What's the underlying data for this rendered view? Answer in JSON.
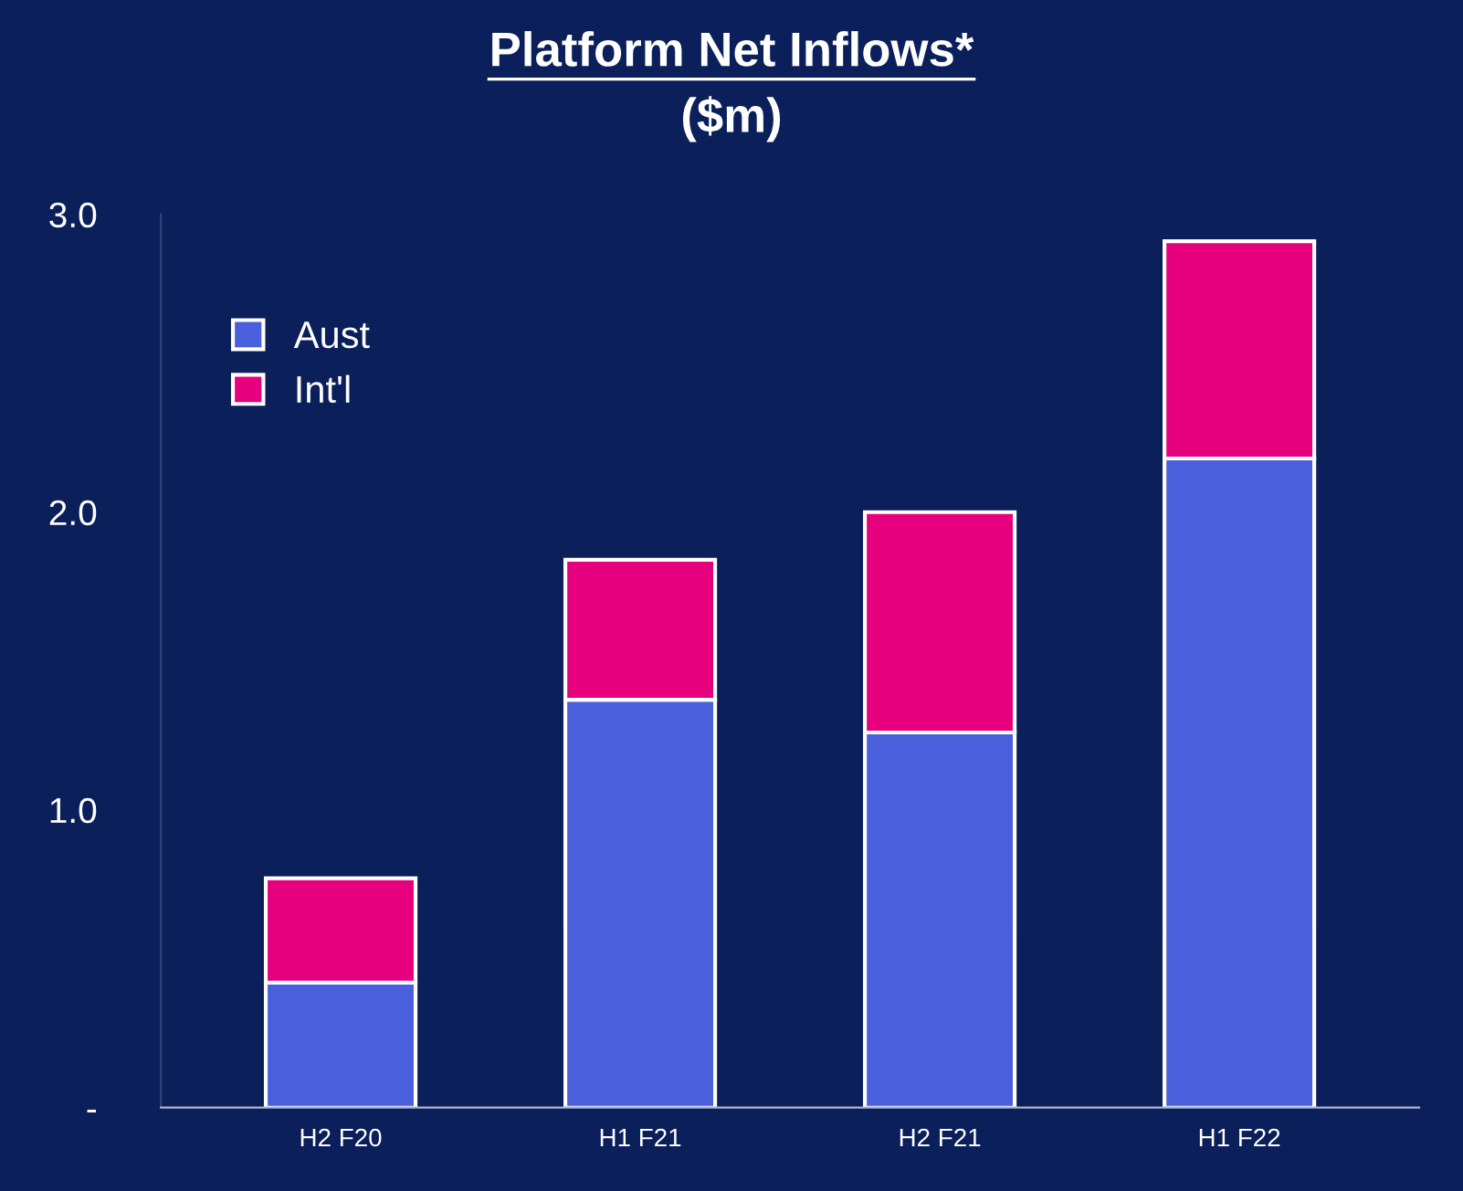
{
  "chart_data": {
    "type": "bar",
    "title": "Platform Net Inflows*",
    "subtitle": "($m)",
    "categories": [
      "H2 F20",
      "H1 F21",
      "H2 F21",
      "H1 F22"
    ],
    "stacked": true,
    "series": [
      {
        "name": "Aust",
        "color": "#4a5fdb",
        "values": [
          0.42,
          1.37,
          1.26,
          2.18
        ]
      },
      {
        "name": "Int'l",
        "color": "#e6007e",
        "values": [
          0.35,
          0.47,
          0.74,
          0.73
        ]
      }
    ],
    "ylim": [
      0,
      3.0
    ],
    "yticks": [
      {
        "value": 0,
        "label": "-"
      },
      {
        "value": 1,
        "label": "1.0"
      },
      {
        "value": 2,
        "label": "2.0"
      },
      {
        "value": 3,
        "label": "3.0"
      }
    ],
    "grid": false,
    "legend": "top left"
  }
}
